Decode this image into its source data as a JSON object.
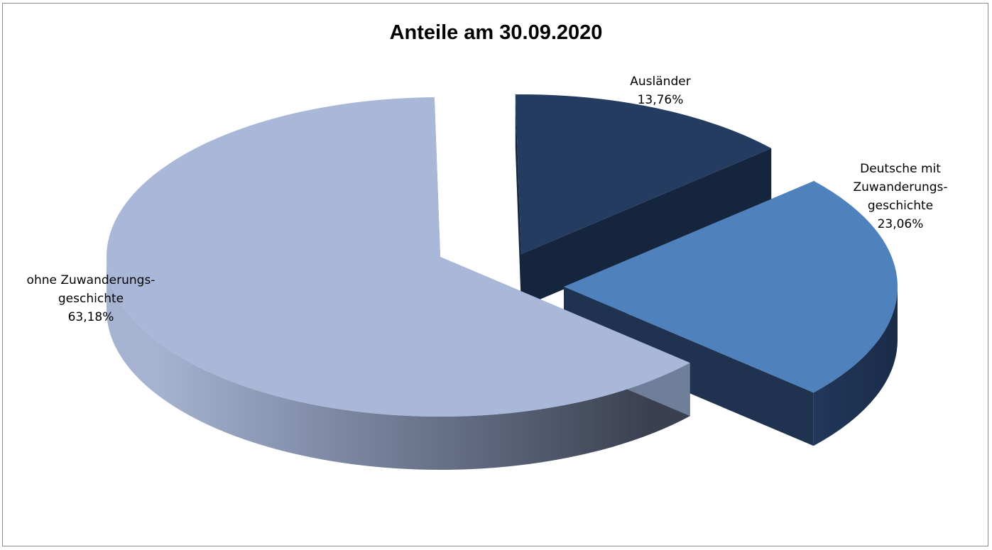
{
  "chart_data": {
    "type": "pie",
    "title": "Anteile am 30.09.2020",
    "slices": [
      {
        "label_lines": [
          "Ausländer"
        ],
        "value": 13.76,
        "display": "13,76%",
        "color": "#243c5f",
        "side_color": "#15253d"
      },
      {
        "label_lines": [
          "Deutsche mit",
          "Zuwanderungs-",
          "geschichte"
        ],
        "value": 23.06,
        "display": "23,06%",
        "color": "#4f81bd",
        "side_color": "#1f324f"
      },
      {
        "label_lines": [
          "ohne Zuwanderungs-",
          "geschichte"
        ],
        "value": 63.18,
        "display": "63,18%",
        "color": "#a9b8d8",
        "side_color": "#6f7f9a"
      }
    ],
    "legend": "none",
    "exploded": true,
    "style": "3d"
  }
}
